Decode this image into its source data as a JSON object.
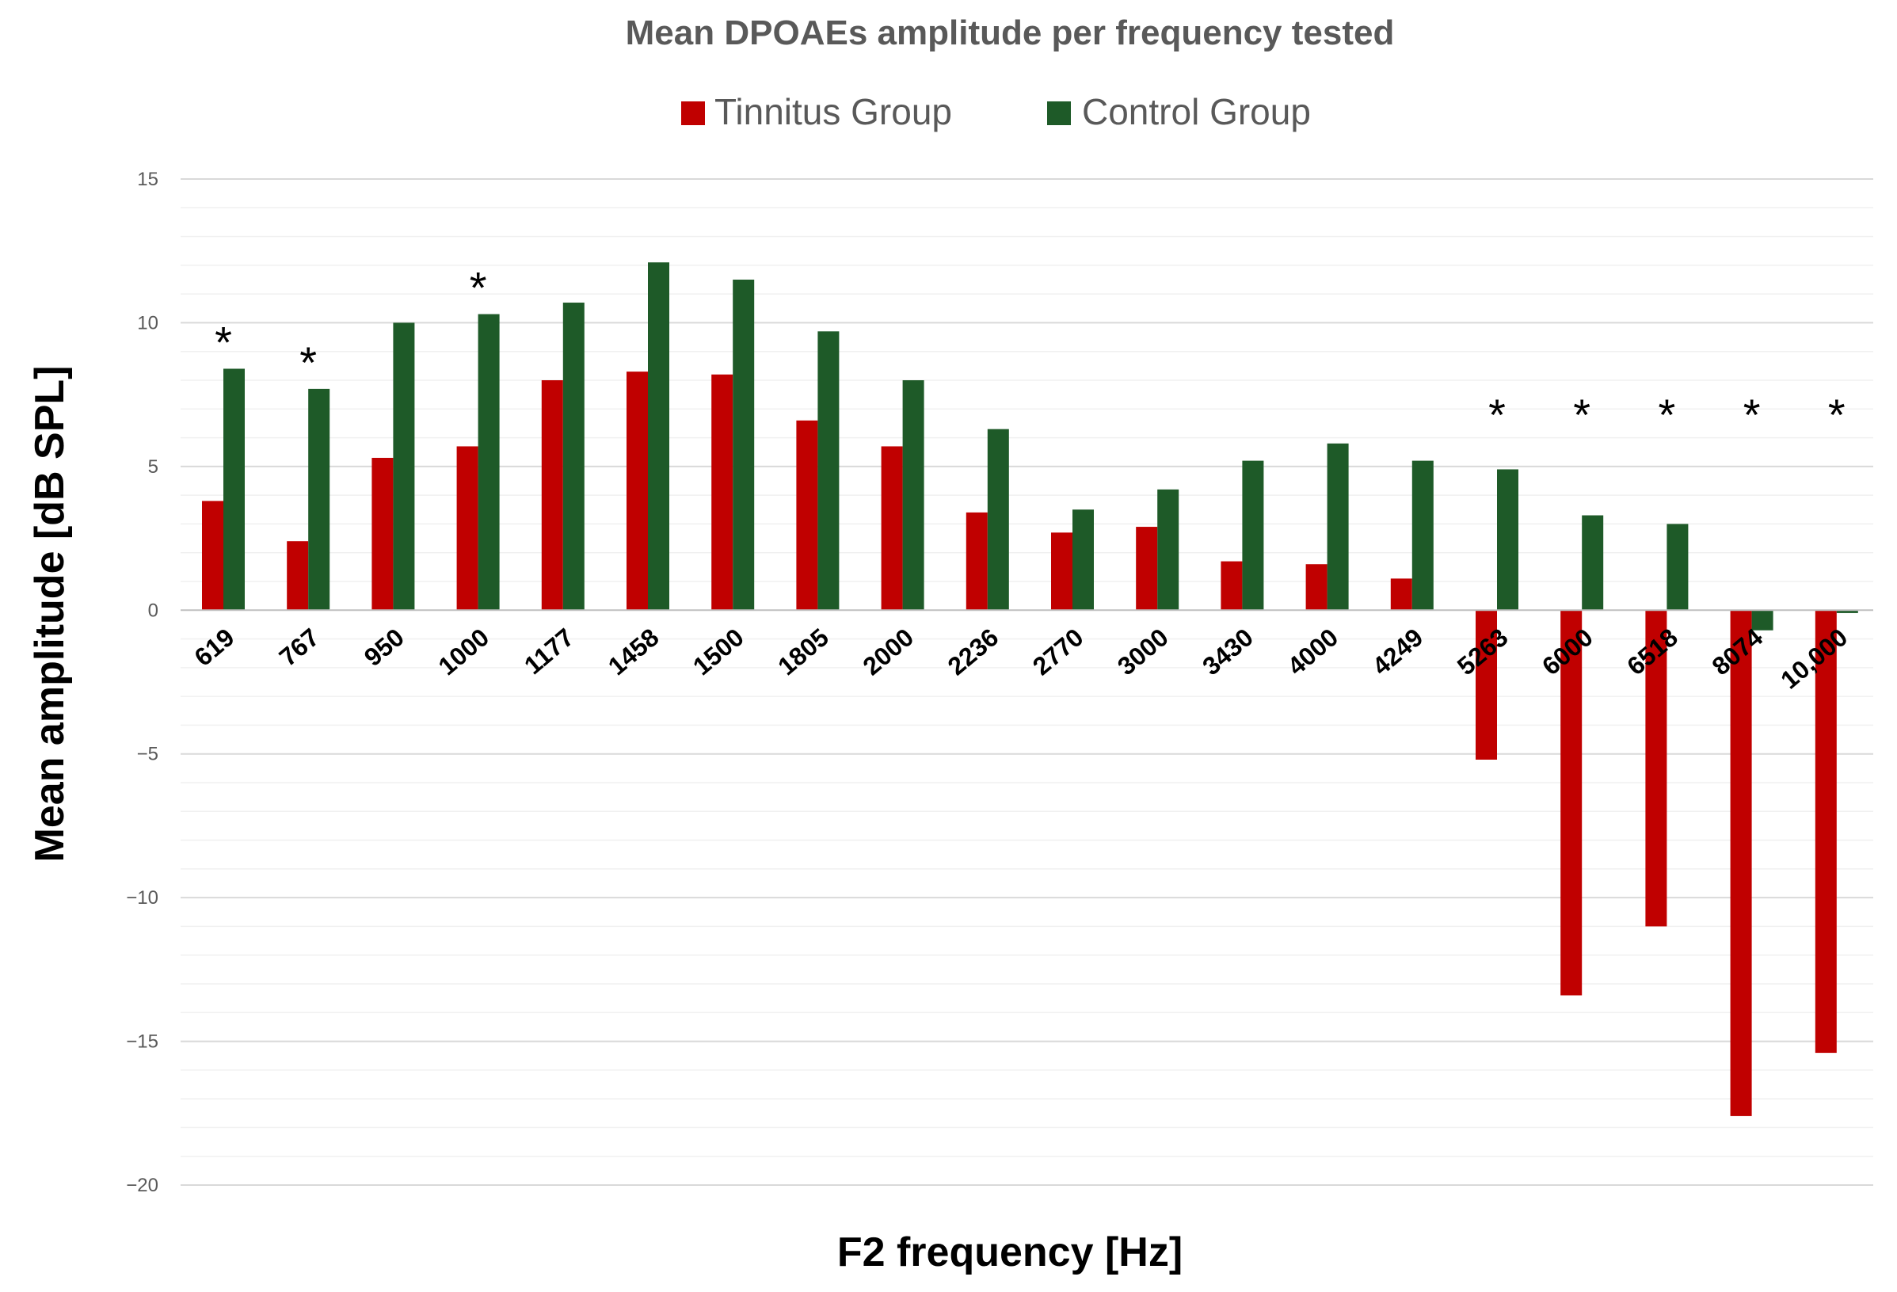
{
  "chart_data": {
    "type": "bar",
    "title": "Mean DPOAEs amplitude per frequency tested",
    "xlabel": "F2 frequency [Hz]",
    "ylabel": "Mean amplitude [dB SPL]",
    "ylim": [
      -20,
      15
    ],
    "yticks": [
      15,
      10,
      5,
      0,
      -5,
      -10,
      -15,
      -20
    ],
    "ytick_labels": [
      "15",
      "10",
      "5",
      "0",
      "−5",
      "−10",
      "−15",
      "−20"
    ],
    "grid": true,
    "legend_position": "top-center",
    "categories": [
      "619",
      "767",
      "950",
      "1000",
      "1177",
      "1458",
      "1500",
      "1805",
      "2000",
      "2236",
      "2770",
      "3000",
      "3430",
      "4000",
      "4249",
      "5263",
      "6000",
      "6518",
      "8074",
      "10,000"
    ],
    "series": [
      {
        "name": "Tinnitus Group",
        "color": "#c00000",
        "values": [
          3.8,
          2.4,
          5.3,
          5.7,
          8.0,
          8.3,
          8.2,
          6.6,
          5.7,
          3.4,
          2.7,
          2.9,
          1.7,
          1.6,
          1.1,
          -5.2,
          -13.4,
          -11.0,
          -17.6,
          -15.4
        ]
      },
      {
        "name": "Control Group",
        "color": "#1e5a28",
        "values": [
          8.4,
          7.7,
          10.0,
          10.3,
          10.7,
          12.1,
          11.5,
          9.7,
          8.0,
          6.3,
          3.5,
          4.2,
          5.2,
          5.8,
          5.2,
          4.9,
          3.3,
          3.0,
          -0.7,
          -0.1
        ]
      }
    ],
    "significance_marker": "*",
    "significant_categories": [
      0,
      1,
      3,
      15,
      16,
      17,
      18,
      19
    ]
  }
}
